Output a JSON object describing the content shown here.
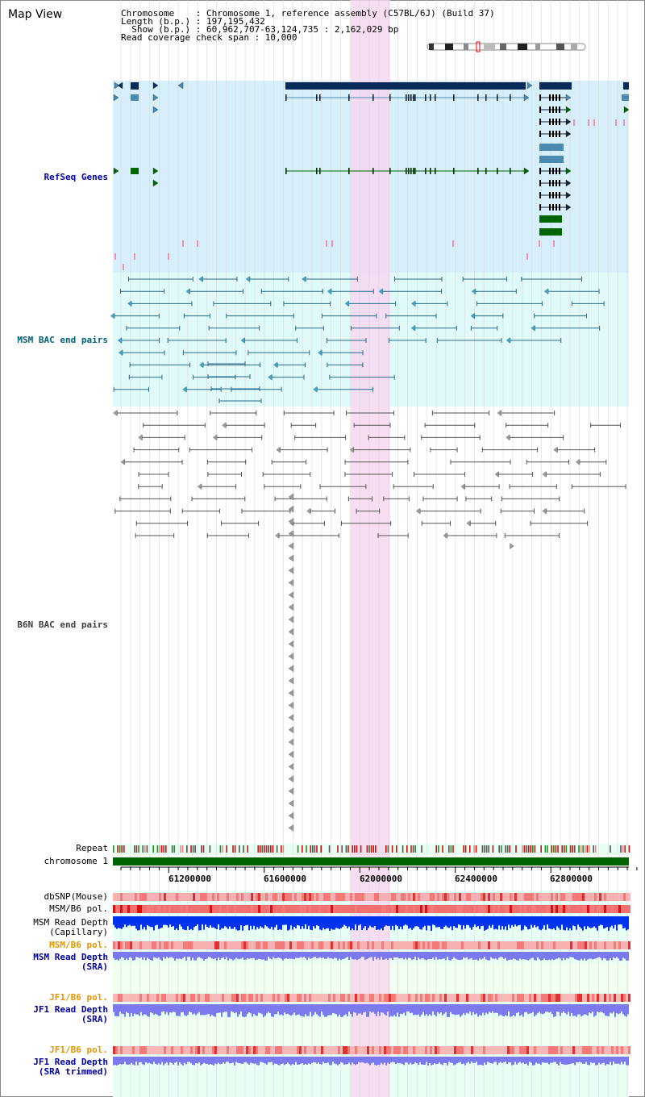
{
  "title": "Map View",
  "info": {
    "lines": [
      "Chromosome    : Chromosome 1, reference assembly (C57BL/6J) (Build 37)",
      "Length (b.p.) : 197,195,432",
      "  Show (b.p.) : 60,962,707-63,124,735 : 2,162,029 bp",
      "Read coverage check span : 10,000"
    ]
  },
  "tracks": {
    "refseq": "RefSeq Genes",
    "msm_bac": "MSM BAC end pairs",
    "b6n_bac": "B6N BAC end pairs",
    "repeat": "Repeat",
    "chromosome": "chromosome 1",
    "dbsnp": "dbSNP(Mouse)",
    "msm_b6_pol_1": "MSM/B6 pol.",
    "msm_depth_cap": "MSM Read Depth\n(Capillary)",
    "msm_b6_pol_2": "MSM/B6 pol.",
    "msm_depth_sra": "MSM Read Depth\n(SRA)",
    "jf1_b6_pol_1": "JF1/B6 pol.",
    "jf1_depth_sra": "JF1 Read Depth\n(SRA)",
    "jf1_b6_pol_2": "JF1/B6 pol.",
    "jf1_depth_trim": "JF1 Read Depth\n(SRA trimmed)"
  },
  "axis": {
    "ticks": [
      "61200000",
      "61600000",
      "62000000",
      "62400000",
      "62800000"
    ]
  },
  "colors": {
    "highlight": "#f7d6f0",
    "refseq_bg": "#d6effa",
    "msm_bg": "#e0fafa",
    "gene_dark": "#0a2a5a",
    "gene_green": "#006400",
    "gene_light": "#4a8ab0",
    "chromosome": "#006400",
    "depth_blue": "#0033ee",
    "depth_light": "#7a7aee"
  }
}
